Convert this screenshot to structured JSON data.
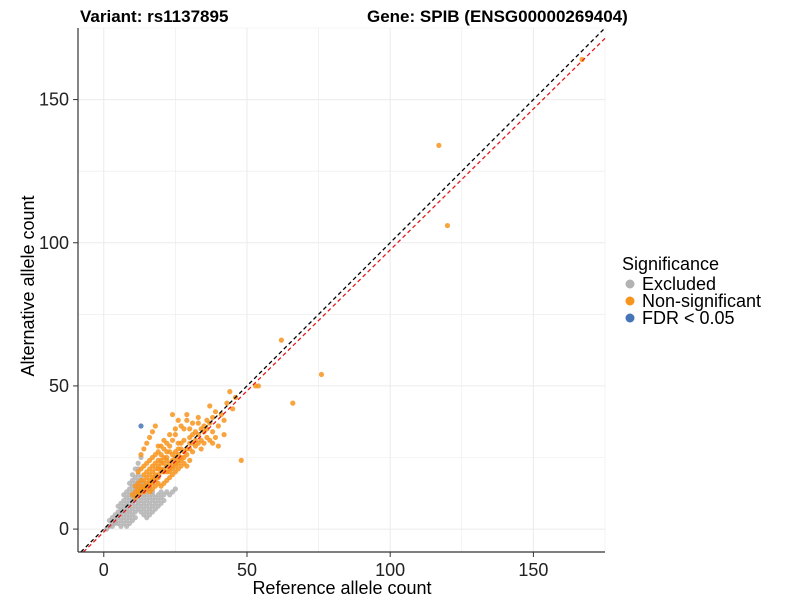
{
  "chart_data": {
    "type": "scatter",
    "title_left": "Variant: rs1137895",
    "title_right": "Gene: SPIB (ENSG00000269404)",
    "xlabel": "Reference allele count",
    "ylabel": "Alternative allele count",
    "xlim": [
      -9,
      175
    ],
    "ylim": [
      -8,
      175
    ],
    "xticks": [
      0,
      50,
      100,
      150
    ],
    "yticks": [
      0,
      50,
      100,
      150
    ],
    "grid": true,
    "legend": {
      "title": "Significance",
      "position": "right",
      "entries": [
        {
          "label": "Excluded",
          "color": "#b3b3b3"
        },
        {
          "label": "Non-significant",
          "color": "#f7941d"
        },
        {
          "label": "FDR < 0.05",
          "color": "#4575b4"
        }
      ]
    },
    "reference_lines": [
      {
        "name": "identity",
        "slope": 1.0,
        "intercept": 0,
        "color": "#000000",
        "dash": true
      },
      {
        "name": "fit",
        "slope": 0.985,
        "intercept": -1,
        "color": "#e41a1c",
        "dash": true
      }
    ],
    "series": [
      {
        "name": "Excluded",
        "color": "#b3b3b3",
        "points": [
          [
            1,
            0
          ],
          [
            2,
            1
          ],
          [
            2,
            3
          ],
          [
            3,
            2
          ],
          [
            3,
            4
          ],
          [
            4,
            3
          ],
          [
            4,
            5
          ],
          [
            5,
            4
          ],
          [
            5,
            6
          ],
          [
            5,
            2
          ],
          [
            6,
            5
          ],
          [
            6,
            7
          ],
          [
            6,
            3
          ],
          [
            7,
            6
          ],
          [
            7,
            8
          ],
          [
            7,
            4
          ],
          [
            7,
            10
          ],
          [
            8,
            7
          ],
          [
            8,
            9
          ],
          [
            8,
            5
          ],
          [
            8,
            11
          ],
          [
            8,
            3
          ],
          [
            9,
            8
          ],
          [
            9,
            10
          ],
          [
            9,
            6
          ],
          [
            9,
            12
          ],
          [
            9,
            4
          ],
          [
            9,
            14
          ],
          [
            10,
            9
          ],
          [
            10,
            11
          ],
          [
            10,
            7
          ],
          [
            10,
            13
          ],
          [
            10,
            5
          ],
          [
            10,
            15
          ],
          [
            10,
            17
          ],
          [
            11,
            10
          ],
          [
            11,
            12
          ],
          [
            11,
            8
          ],
          [
            11,
            14
          ],
          [
            11,
            6
          ],
          [
            11,
            16
          ],
          [
            11,
            18
          ],
          [
            12,
            11
          ],
          [
            12,
            13
          ],
          [
            12,
            9
          ],
          [
            12,
            15
          ],
          [
            12,
            7
          ],
          [
            12,
            17
          ],
          [
            12,
            19
          ],
          [
            12,
            21
          ],
          [
            13,
            12
          ],
          [
            13,
            14
          ],
          [
            13,
            10
          ],
          [
            13,
            16
          ],
          [
            13,
            8
          ],
          [
            13,
            6
          ],
          [
            14,
            13
          ],
          [
            14,
            11
          ],
          [
            14,
            9
          ],
          [
            14,
            7
          ],
          [
            15,
            12
          ],
          [
            15,
            10
          ],
          [
            15,
            8
          ],
          [
            15,
            6
          ],
          [
            16,
            11
          ],
          [
            16,
            9
          ],
          [
            16,
            7
          ],
          [
            17,
            12
          ],
          [
            17,
            10
          ],
          [
            17,
            8
          ],
          [
            18,
            11
          ],
          [
            18,
            9
          ],
          [
            19,
            12
          ],
          [
            19,
            10
          ],
          [
            20,
            13
          ],
          [
            20,
            11
          ],
          [
            21,
            12
          ],
          [
            22,
            13
          ],
          [
            3,
            1
          ],
          [
            4,
            2
          ],
          [
            6,
            1
          ],
          [
            7,
            2
          ],
          [
            8,
            1
          ],
          [
            9,
            2
          ],
          [
            10,
            3
          ],
          [
            11,
            4
          ],
          [
            5,
            8
          ],
          [
            6,
            9
          ],
          [
            7,
            12
          ],
          [
            8,
            13
          ],
          [
            9,
            16
          ],
          [
            10,
            19
          ],
          [
            11,
            21
          ],
          [
            12,
            23
          ],
          [
            13,
            25
          ],
          [
            14,
            5
          ],
          [
            15,
            4
          ],
          [
            16,
            5
          ],
          [
            17,
            6
          ],
          [
            18,
            7
          ],
          [
            19,
            8
          ],
          [
            20,
            9
          ],
          [
            21,
            10
          ],
          [
            23,
            12
          ],
          [
            24,
            13
          ],
          [
            25,
            14
          ],
          [
            13,
            18
          ],
          [
            14,
            16
          ],
          [
            15,
            15
          ],
          [
            16,
            14
          ],
          [
            17,
            13
          ]
        ]
      },
      {
        "name": "Non-significant",
        "color": "#f7941d",
        "points": [
          [
            167,
            164
          ],
          [
            117,
            134
          ],
          [
            120,
            106
          ],
          [
            62,
            66
          ],
          [
            76,
            54
          ],
          [
            54,
            50
          ],
          [
            53,
            50
          ],
          [
            66,
            44
          ],
          [
            48,
            24
          ],
          [
            44,
            48
          ],
          [
            46,
            46
          ],
          [
            43,
            44
          ],
          [
            45,
            42
          ],
          [
            41,
            40
          ],
          [
            38,
            39
          ],
          [
            40,
            36
          ],
          [
            36,
            38
          ],
          [
            42,
            33
          ],
          [
            38,
            34
          ],
          [
            35,
            36
          ],
          [
            33,
            37
          ],
          [
            32,
            34
          ],
          [
            30,
            32
          ],
          [
            28,
            35
          ],
          [
            27,
            30
          ],
          [
            29,
            38
          ],
          [
            26,
            28
          ],
          [
            31,
            30
          ],
          [
            34,
            31
          ],
          [
            25,
            33
          ],
          [
            24,
            31
          ],
          [
            23,
            29
          ],
          [
            22,
            27
          ],
          [
            21,
            25
          ],
          [
            20,
            23
          ],
          [
            19,
            21
          ],
          [
            18,
            19
          ],
          [
            17,
            18
          ],
          [
            16,
            17
          ],
          [
            15,
            16
          ],
          [
            14,
            15
          ],
          [
            13,
            14
          ],
          [
            12,
            13
          ],
          [
            25,
            22
          ],
          [
            26,
            24
          ],
          [
            27,
            25
          ],
          [
            28,
            27
          ],
          [
            29,
            26
          ],
          [
            30,
            28
          ],
          [
            31,
            27
          ],
          [
            32,
            29
          ],
          [
            33,
            30
          ],
          [
            34,
            28
          ],
          [
            35,
            30
          ],
          [
            36,
            32
          ],
          [
            37,
            31
          ],
          [
            38,
            30
          ],
          [
            39,
            32
          ],
          [
            22,
            30
          ],
          [
            20,
            29
          ],
          [
            19,
            27
          ],
          [
            18,
            26
          ],
          [
            17,
            25
          ],
          [
            16,
            24
          ],
          [
            15,
            23
          ],
          [
            14,
            22
          ],
          [
            13,
            21
          ],
          [
            12,
            20
          ],
          [
            13,
            26
          ],
          [
            14,
            28
          ],
          [
            15,
            30
          ],
          [
            16,
            32
          ],
          [
            17,
            34
          ],
          [
            18,
            36
          ],
          [
            20,
            20
          ],
          [
            21,
            21
          ],
          [
            22,
            22
          ],
          [
            23,
            23
          ],
          [
            24,
            24
          ],
          [
            25,
            25
          ],
          [
            26,
            26
          ],
          [
            19,
            18
          ],
          [
            18,
            17
          ],
          [
            17,
            16
          ],
          [
            16,
            15
          ],
          [
            15,
            14
          ],
          [
            14,
            13
          ],
          [
            24,
            19
          ],
          [
            25,
            20
          ],
          [
            26,
            21
          ],
          [
            27,
            22
          ],
          [
            28,
            23
          ],
          [
            29,
            22
          ],
          [
            30,
            24
          ],
          [
            23,
            18
          ],
          [
            22,
            17
          ],
          [
            21,
            16
          ],
          [
            20,
            15
          ],
          [
            19,
            16
          ],
          [
            18,
            15
          ],
          [
            17,
            14
          ],
          [
            16,
            13
          ],
          [
            20,
            26
          ],
          [
            21,
            28
          ],
          [
            22,
            25
          ],
          [
            23,
            27
          ],
          [
            24,
            26
          ],
          [
            25,
            27
          ],
          [
            26,
            30
          ],
          [
            27,
            28
          ],
          [
            28,
            31
          ],
          [
            19,
            24
          ],
          [
            18,
            23
          ],
          [
            17,
            22
          ],
          [
            16,
            21
          ],
          [
            15,
            20
          ],
          [
            14,
            19
          ],
          [
            13,
            17
          ],
          [
            12,
            16
          ],
          [
            11,
            15
          ],
          [
            11,
            13
          ],
          [
            12,
            14
          ],
          [
            13,
            15
          ],
          [
            14,
            17
          ],
          [
            15,
            18
          ],
          [
            16,
            19
          ],
          [
            17,
            20
          ],
          [
            18,
            21
          ],
          [
            19,
            22
          ],
          [
            20,
            24
          ],
          [
            21,
            23
          ],
          [
            22,
            24
          ],
          [
            23,
            21
          ],
          [
            24,
            22
          ],
          [
            25,
            23
          ],
          [
            26,
            23
          ],
          [
            27,
            24
          ],
          [
            28,
            25
          ],
          [
            29,
            28
          ],
          [
            30,
            30
          ],
          [
            31,
            33
          ],
          [
            32,
            31
          ],
          [
            33,
            33
          ],
          [
            34,
            35
          ],
          [
            35,
            34
          ],
          [
            36,
            35
          ],
          [
            37,
            37
          ],
          [
            10,
            12
          ],
          [
            11,
            11
          ],
          [
            12,
            12
          ],
          [
            13,
            13
          ],
          [
            14,
            14
          ],
          [
            15,
            15
          ],
          [
            16,
            16
          ],
          [
            17,
            17
          ],
          [
            18,
            18
          ],
          [
            19,
            19
          ],
          [
            20,
            21
          ],
          [
            21,
            20
          ],
          [
            22,
            20
          ],
          [
            23,
            20
          ],
          [
            24,
            21
          ],
          [
            40,
            29
          ],
          [
            42,
            38
          ],
          [
            39,
            41
          ],
          [
            37,
            43
          ],
          [
            29,
            40
          ],
          [
            27,
            36
          ],
          [
            25,
            35
          ],
          [
            23,
            33
          ],
          [
            21,
            31
          ],
          [
            19,
            29
          ],
          [
            24,
            40
          ],
          [
            26,
            38
          ],
          [
            30,
            35
          ],
          [
            31,
            37
          ],
          [
            33,
            39
          ]
        ]
      },
      {
        "name": "FDR < 0.05",
        "color": "#4575b4",
        "points": [
          [
            13,
            36
          ]
        ]
      }
    ]
  }
}
